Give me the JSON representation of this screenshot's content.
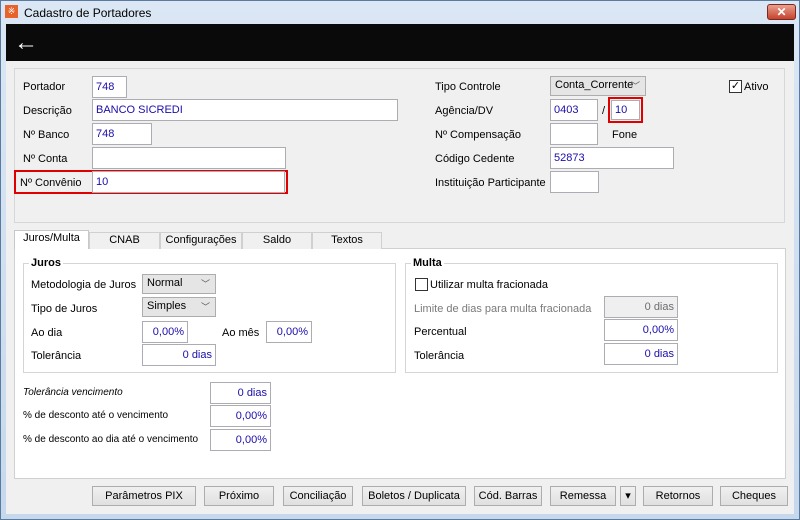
{
  "window": {
    "title": "Cadastro de Portadores",
    "close_label": "✕"
  },
  "header": {
    "back_icon": "←"
  },
  "form": {
    "portador": {
      "label": "Portador",
      "value": "748"
    },
    "descricao": {
      "label": "Descrição",
      "value": "BANCO SICREDI"
    },
    "nbanco": {
      "label": "Nº Banco",
      "value": "748"
    },
    "nconta": {
      "label": "Nº Conta",
      "value": ""
    },
    "nconvenio": {
      "label": "Nº Convênio",
      "value": "10"
    },
    "tipo_controle": {
      "label": "Tipo Controle",
      "value": "Conta_Corrente"
    },
    "ativo": {
      "label": "Ativo",
      "checked": true
    },
    "agencia": {
      "label": "Agência/DV",
      "value": "0403",
      "separator": "/",
      "dv": "10"
    },
    "ncompensacao": {
      "label": "Nº Compensação",
      "value": ""
    },
    "fone": {
      "label": "Fone"
    },
    "codigo_cedente": {
      "label": "Código Cedente",
      "value": "52873"
    },
    "instituicao": {
      "label": "Instituição Participante",
      "value": ""
    }
  },
  "tabs": [
    {
      "label": "Juros/Multa",
      "active": true
    },
    {
      "label": "CNAB"
    },
    {
      "label": "Configurações"
    },
    {
      "label": "Saldo"
    },
    {
      "label": "Textos"
    }
  ],
  "juros": {
    "title": "Juros",
    "metodologia": {
      "label": "Metodologia de Juros",
      "value": "Normal"
    },
    "tipo": {
      "label": "Tipo de Juros",
      "value": "Simples"
    },
    "ao_dia": {
      "label": "Ao dia",
      "value": "0,00%"
    },
    "ao_mes": {
      "label": "Ao mês",
      "value": "0,00%"
    },
    "tolerancia": {
      "label": "Tolerância",
      "value": "0 dias"
    }
  },
  "multa": {
    "title": "Multa",
    "fracionada": {
      "label": "Utilizar multa fracionada",
      "checked": false
    },
    "limite": {
      "label": "Limite de dias para multa fracionada",
      "value": "0 dias"
    },
    "percentual": {
      "label": "Percentual",
      "value": "0,00%"
    },
    "tolerancia": {
      "label": "Tolerância",
      "value": "0 dias"
    }
  },
  "extra": {
    "tol_venc": {
      "label": "Tolerância vencimento",
      "value": "0 dias"
    },
    "desc_venc": {
      "label": "% de desconto até o vencimento",
      "value": "0,00%"
    },
    "desc_dia": {
      "label": "% de desconto ao dia até o vencimento",
      "value": "0,00%"
    }
  },
  "buttons": {
    "pix": "Parâmetros PIX",
    "proximo": "Próximo",
    "conciliacao": "Conciliação",
    "boletos": "Boletos / Duplicata",
    "barras": "Cód. Barras",
    "remessa": "Remessa",
    "remessa_arrow": "▾",
    "retornos": "Retornos",
    "cheques": "Cheques"
  }
}
